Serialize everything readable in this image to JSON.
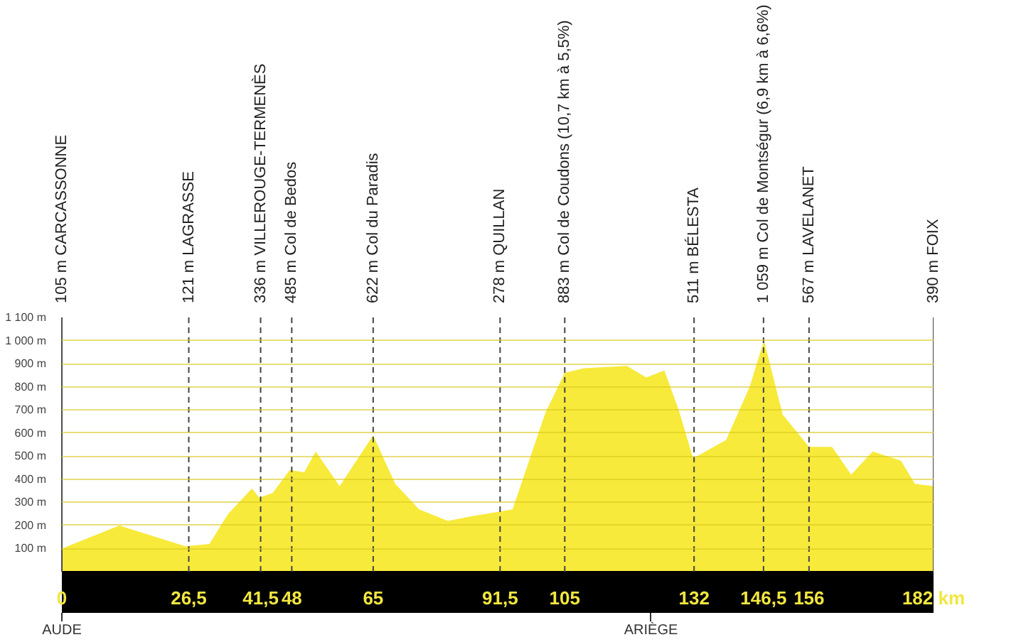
{
  "chart_data": {
    "type": "area",
    "color": "#f7ea3a",
    "x": [
      0,
      12,
      25.8,
      30.8,
      34.7,
      39.7,
      41.2,
      44,
      47.6,
      50.6,
      53,
      58,
      65,
      69.6,
      74.6,
      80.6,
      85.5,
      91.3,
      94.1,
      101,
      105,
      109,
      118,
      122,
      125.8,
      128.8,
      131.8,
      138.7,
      143.6,
      146.6,
      150.5,
      156,
      160.8,
      164.8,
      169.3,
      175.2,
      178.1,
      182
    ],
    "values": [
      100,
      200,
      110,
      120,
      250,
      360,
      320,
      340,
      440,
      430,
      520,
      370,
      590,
      380,
      270,
      220,
      240,
      260,
      270,
      690,
      860,
      880,
      890,
      840,
      870,
      700,
      490,
      570,
      800,
      1000,
      680,
      540,
      540,
      420,
      520,
      480,
      380,
      370
    ],
    "xlim": [
      0,
      182
    ],
    "xticks": [
      {
        "value": 0,
        "label": "0"
      },
      {
        "value": 26.5,
        "label": "26,5"
      },
      {
        "value": 41.5,
        "label": "41,5"
      },
      48,
      65,
      {
        "value": 91.5,
        "label": "91,5"
      },
      105,
      132,
      {
        "value": 146.5,
        "label": "146,5"
      },
      156,
      {
        "value": 182,
        "label": "182 km"
      }
    ],
    "ylim": [
      0,
      1100
    ],
    "yticks": [
      {
        "value": 100,
        "label": "100 m"
      },
      {
        "value": 200,
        "label": "200 m"
      },
      {
        "value": 300,
        "label": "300 m"
      },
      {
        "value": 400,
        "label": "400 m"
      },
      {
        "value": 500,
        "label": "500 m"
      },
      {
        "value": 600,
        "label": "600 m"
      },
      {
        "value": 700,
        "label": "700 m"
      },
      {
        "value": 800,
        "label": "800 m"
      },
      {
        "value": 900,
        "label": "900 m"
      },
      {
        "value": 1000,
        "label": "1 000 m"
      },
      {
        "value": 1100,
        "label": "1 100 m"
      }
    ],
    "grid": "y",
    "ref_lines": [
      {
        "axis": "x",
        "value": 0,
        "label": "105 m CARCASSONNE",
        "line_style": "solid"
      },
      {
        "axis": "x",
        "value": 26.5,
        "label": "121 m LAGRASSE",
        "line_style": "dashed"
      },
      {
        "axis": "x",
        "value": 41.5,
        "label": "336 m VILLEROUGE-TERMENÈS",
        "line_style": "dashed"
      },
      {
        "axis": "x",
        "value": 48,
        "label": "485 m Col de Bedos",
        "line_style": "dashed"
      },
      {
        "axis": "x",
        "value": 65,
        "label": "622 m Col du Paradis",
        "line_style": "dashed"
      },
      {
        "axis": "x",
        "value": 91.5,
        "label": "278 m QUILLAN",
        "line_style": "dashed"
      },
      {
        "axis": "x",
        "value": 105,
        "label": "883 m Col de Coudons (10,7 km à 5,5%)",
        "line_style": "dashed"
      },
      {
        "axis": "x",
        "value": 132,
        "label": "511 m BÉLESTA",
        "line_style": "dashed"
      },
      {
        "axis": "x",
        "value": 146.5,
        "label": "1 059 m Col de Montségur (6,9 km à 6,6%)",
        "line_style": "dashed"
      },
      {
        "axis": "x",
        "value": 156,
        "label": "567 m LAVELANET",
        "line_style": "dashed"
      },
      {
        "axis": "x",
        "value": 182,
        "label": "390 m FOIX",
        "line_style": "solid"
      },
      {
        "axis": "x",
        "value": 0,
        "label": "AUDE"
      },
      {
        "axis": "x",
        "value": 123,
        "label": "ARIÈGE"
      }
    ]
  }
}
